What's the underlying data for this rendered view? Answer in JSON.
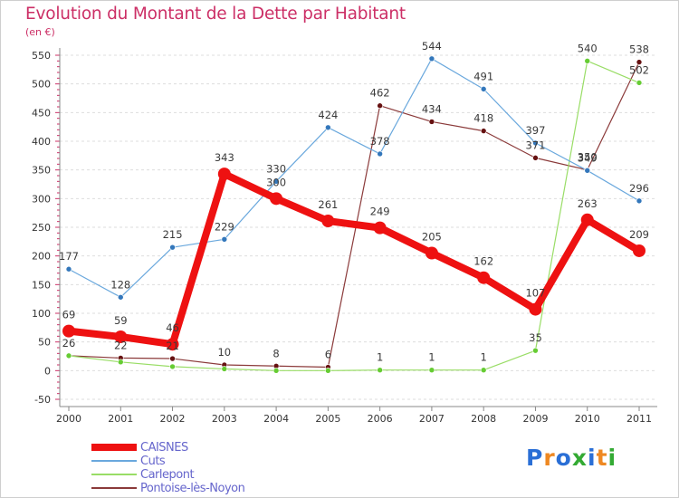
{
  "chart_data": {
    "type": "line",
    "title": "Evolution du Montant de la Dette par Habitant",
    "subtitle": "(en €)",
    "xlabel": "",
    "ylabel": "",
    "x": [
      "2000",
      "2001",
      "2002",
      "2003",
      "2004",
      "2005",
      "2006",
      "2007",
      "2008",
      "2009",
      "2010",
      "2011"
    ],
    "ylim": [
      -50,
      550
    ],
    "yticks": [
      "-50",
      "0",
      "50",
      "100",
      "150",
      "200",
      "250",
      "300",
      "350",
      "400",
      "450",
      "500",
      "550"
    ],
    "grid": "horizontal-dashed",
    "legend_position": "bottom-left",
    "series": [
      {
        "name": "CAISNES",
        "color": "#ee1111",
        "marker_color": "#2266cc",
        "values": [
          69,
          59,
          46,
          343,
          300,
          261,
          249,
          205,
          162,
          107,
          263,
          209
        ],
        "labels": [
          "69",
          "59",
          "46",
          "343",
          "300",
          "261",
          "249",
          "205",
          "162",
          "107",
          "263",
          "209"
        ]
      },
      {
        "name": "Cuts",
        "color": "#6aa8dd",
        "marker_color": "#3377bb",
        "values": [
          177,
          128,
          215,
          229,
          330,
          424,
          378,
          544,
          491,
          397,
          349,
          296
        ],
        "labels": [
          "177",
          "128",
          "215",
          "229",
          "330",
          "424",
          "378",
          "544",
          "491",
          "397",
          "349",
          "296"
        ]
      },
      {
        "name": "Carlepont",
        "color": "#99dd66",
        "marker_color": "#66cc33",
        "values": [
          26,
          15,
          7,
          3,
          0,
          0,
          1,
          1,
          1,
          35,
          540,
          502
        ],
        "labels": [
          "",
          "",
          "",
          "",
          "",
          "",
          "1",
          "1",
          "1",
          "35",
          "540",
          "502"
        ]
      },
      {
        "name": "Pontoise-lès-Noyon",
        "color": "#8b3a3a",
        "marker_color": "#661111",
        "values": [
          26,
          22,
          21,
          10,
          8,
          6,
          462,
          434,
          418,
          371,
          350,
          538
        ],
        "labels": [
          "26",
          "22",
          "21",
          "10",
          "8",
          "6",
          "462",
          "434",
          "418",
          "371",
          "350",
          "538"
        ]
      }
    ]
  },
  "logo": {
    "text": "Proxiti",
    "letters": [
      {
        "ch": "P",
        "color": "#2a6fd6"
      },
      {
        "ch": "r",
        "color": "#ee8822"
      },
      {
        "ch": "o",
        "color": "#2a6fd6"
      },
      {
        "ch": "x",
        "color": "#33aa33"
      },
      {
        "ch": "i",
        "color": "#2a6fd6"
      },
      {
        "ch": "t",
        "color": "#ee8822"
      },
      {
        "ch": "i",
        "color": "#33aa33"
      }
    ]
  }
}
